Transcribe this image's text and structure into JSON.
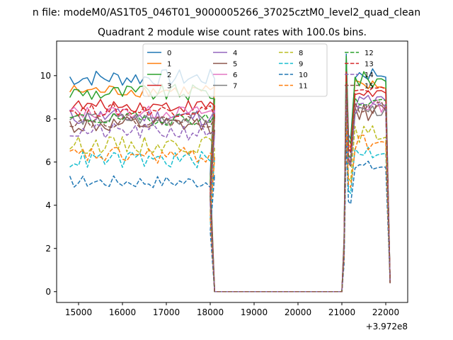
{
  "figure": {
    "suptitle": "n file: modeM0/AS1T05_046T01_9000005266_37025cztM0_level2_quad_clean"
  },
  "chart_data": {
    "type": "line",
    "title": "Quadrant 2 module wise count rates with 100.0s bins.",
    "xlabel": "",
    "ylabel": "",
    "x_offset_label": "+3.972e8",
    "xlim": [
      14500,
      22500
    ],
    "ylim": [
      -0.5,
      11.6
    ],
    "xticks": [
      15000,
      16000,
      17000,
      18000,
      19000,
      20000,
      21000,
      22000
    ],
    "xtick_labels": [
      "15000",
      "16000",
      "17000",
      "18000",
      "19000",
      "20000",
      "21000",
      "22000"
    ],
    "yticks": [
      0,
      2,
      4,
      6,
      8,
      10
    ],
    "ytick_labels": [
      "0",
      "2",
      "4",
      "6",
      "8",
      "10"
    ],
    "grid": false,
    "legend": {
      "placement": "top-center",
      "columns": 4
    },
    "x_grid": {
      "first_start": 14800,
      "first_count": 34,
      "step": 100,
      "gap_start": 18100,
      "gap_end": 21000,
      "second_start": 21000,
      "second_end": 22100
    },
    "series": [
      {
        "name": "0",
        "color": "#1f77b4",
        "dash": "solid",
        "level": 9.9,
        "amp": 0.4,
        "post": 10.1,
        "peak": 11.0
      },
      {
        "name": "1",
        "color": "#ff7f0e",
        "dash": "solid",
        "level": 9.3,
        "amp": 0.3,
        "post": 9.5,
        "peak": 10.3
      },
      {
        "name": "2",
        "color": "#2ca02c",
        "dash": "solid",
        "level": 9.2,
        "amp": 0.4,
        "post": 9.8,
        "peak": 10.9
      },
      {
        "name": "3",
        "color": "#d62728",
        "dash": "solid",
        "level": 8.6,
        "amp": 0.3,
        "post": 9.2,
        "peak": 10.0
      },
      {
        "name": "4",
        "color": "#9467bd",
        "dash": "solid",
        "level": 8.1,
        "amp": 0.4,
        "post": 8.8,
        "peak": 9.8
      },
      {
        "name": "5",
        "color": "#8c564b",
        "dash": "solid",
        "level": 7.7,
        "amp": 0.4,
        "post": 8.3,
        "peak": 9.5
      },
      {
        "name": "6",
        "color": "#e377c2",
        "dash": "solid",
        "level": 8.3,
        "amp": 0.3,
        "post": 8.6,
        "peak": 9.6
      },
      {
        "name": "7",
        "color": "#7f7f7f",
        "dash": "solid",
        "level": 8.0,
        "amp": 0.3,
        "post": 8.4,
        "peak": 9.4
      },
      {
        "name": "8",
        "color": "#bcbd22",
        "dash": "dashed",
        "level": 6.8,
        "amp": 0.4,
        "post": 7.3,
        "peak": 8.5
      },
      {
        "name": "9",
        "color": "#17becf",
        "dash": "dashed",
        "level": 6.1,
        "amp": 0.4,
        "post": 6.5,
        "peak": 7.6
      },
      {
        "name": "10",
        "color": "#1f77b4",
        "dash": "dashed",
        "level": 5.1,
        "amp": 0.3,
        "post": 5.8,
        "peak": 7.0
      },
      {
        "name": "11",
        "color": "#ff7f0e",
        "dash": "dashed",
        "level": 6.3,
        "amp": 0.4,
        "post": 6.9,
        "peak": 8.0
      },
      {
        "name": "12",
        "color": "#2ca02c",
        "dash": "dashed",
        "level": 8.0,
        "amp": 0.3,
        "post": 8.8,
        "peak": 9.8
      },
      {
        "name": "13",
        "color": "#d62728",
        "dash": "dashed",
        "level": 8.4,
        "amp": 0.3,
        "post": 9.3,
        "peak": 10.2
      },
      {
        "name": "14",
        "color": "#9467bd",
        "dash": "dashed",
        "level": 7.4,
        "amp": 0.4,
        "post": 8.4,
        "peak": 9.3
      },
      {
        "name": "15",
        "color": "#8c564b",
        "dash": "dashed",
        "level": 7.9,
        "amp": 0.3,
        "post": 8.5,
        "peak": 9.5
      }
    ]
  }
}
